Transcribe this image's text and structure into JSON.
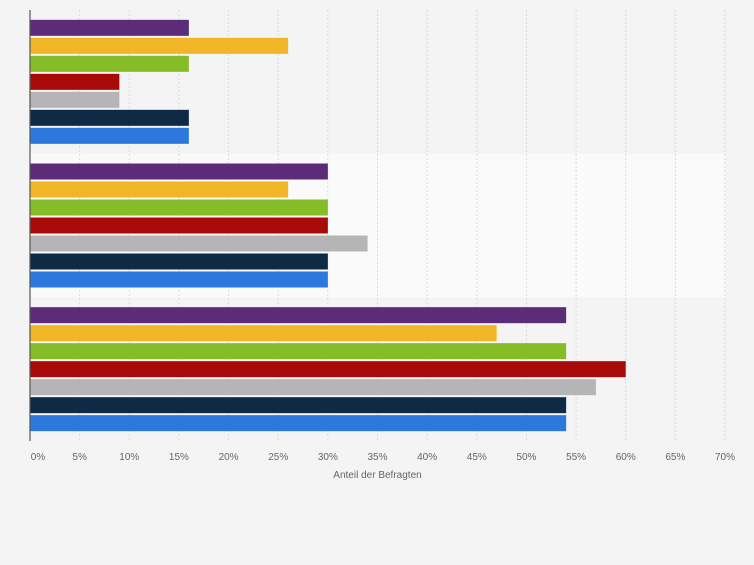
{
  "chart_data": {
    "type": "bar",
    "orientation": "horizontal",
    "xlabel": "Anteil der Befragten",
    "xlim": [
      0,
      70
    ],
    "x_ticks": [
      "0%",
      "5%",
      "10%",
      "15%",
      "20%",
      "25%",
      "30%",
      "35%",
      "40%",
      "45%",
      "50%",
      "55%",
      "60%",
      "65%",
      "70%"
    ],
    "grid": true,
    "groups": 3,
    "series": [
      {
        "color": "#5b2c78",
        "values": [
          16,
          30,
          54
        ]
      },
      {
        "color": "#f0b625",
        "values": [
          26,
          26,
          47
        ]
      },
      {
        "color": "#86bc25",
        "values": [
          16,
          30,
          54
        ]
      },
      {
        "color": "#a80a0a",
        "values": [
          9,
          30,
          60
        ]
      },
      {
        "color": "#b5b5b5",
        "values": [
          9,
          34,
          57
        ]
      },
      {
        "color": "#0f2a45",
        "values": [
          16,
          30,
          54
        ]
      },
      {
        "color": "#2c78dd",
        "values": [
          16,
          30,
          54
        ]
      }
    ]
  }
}
